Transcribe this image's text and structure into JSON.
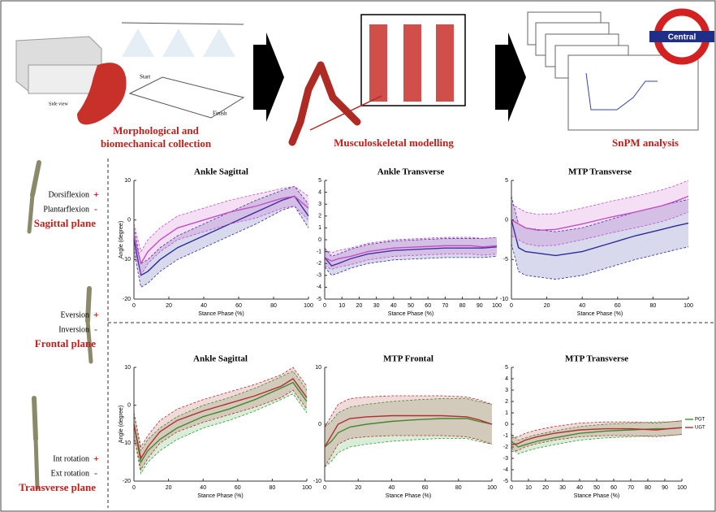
{
  "workflow": {
    "collection_lines": [
      "Morphological and",
      "biomechanical collection"
    ],
    "modelling": "Musculoskeletal modelling",
    "analysis": "SnPM analysis",
    "side_view": "Side view",
    "start": "Start",
    "finish": "Finish",
    "logo": "Central"
  },
  "planes": [
    {
      "positive": "Dorsiflexion",
      "negative": "Plantarflexion",
      "plus": "+",
      "minus": "-",
      "name": "Sagittal plane"
    },
    {
      "positive": "Eversion",
      "negative": "Inversion",
      "plus": "+",
      "minus": "-",
      "name": "Frontal plane"
    },
    {
      "positive": "Int rotation",
      "negative": "Ext rotation",
      "plus": "+",
      "minus": "-",
      "name": "Transverse plane"
    }
  ],
  "chart_data": [
    {
      "type": "line",
      "title": "Ankle Sagittal",
      "xlabel": "Stance Phase (%)",
      "ylabel": "Angle (degree)",
      "x": [
        0,
        4,
        8,
        15,
        25,
        40,
        55,
        70,
        85,
        92,
        100
      ],
      "series": [
        {
          "color": "#2b2b9c",
          "values": [
            -5,
            -14,
            -13,
            -10,
            -7,
            -4,
            -1,
            2,
            5,
            6,
            1
          ],
          "sd": [
            3,
            3,
            3,
            3,
            3,
            3,
            3,
            3,
            2.5,
            2.5,
            3
          ]
        },
        {
          "color": "#c24fc4",
          "values": [
            -4,
            -11,
            -8,
            -5,
            -2,
            0,
            2,
            3.5,
            5.5,
            6,
            3
          ],
          "sd": [
            3,
            3,
            3,
            3,
            3,
            3,
            3,
            3,
            2.5,
            2.5,
            3
          ]
        }
      ],
      "xlim": [
        0,
        100
      ],
      "ylim": [
        -20,
        10
      ],
      "xticks": [
        0,
        20,
        40,
        60,
        80,
        100
      ],
      "yticks": [
        -20,
        -10,
        0,
        10
      ]
    },
    {
      "type": "line",
      "title": "Ankle Transverse",
      "xlabel": "Stance Phase (%)",
      "x": [
        0,
        4,
        8,
        15,
        25,
        40,
        55,
        70,
        85,
        92,
        100
      ],
      "series": [
        {
          "color": "#2b2b9c",
          "values": [
            -1.5,
            -2.2,
            -2,
            -1.6,
            -1.2,
            -0.9,
            -0.8,
            -0.7,
            -0.7,
            -0.7,
            -0.6
          ],
          "sd": [
            0.8,
            0.8,
            0.8,
            0.8,
            0.8,
            0.8,
            0.8,
            0.8,
            0.8,
            0.8,
            0.8
          ]
        },
        {
          "color": "#c24fc4",
          "values": [
            -1.5,
            -1.8,
            -1.6,
            -1.4,
            -1,
            -0.7,
            -0.6,
            -0.5,
            -0.5,
            -0.6,
            -0.5
          ],
          "sd": [
            0.7,
            0.7,
            0.7,
            0.7,
            0.7,
            0.7,
            0.7,
            0.7,
            0.7,
            0.7,
            0.7
          ]
        }
      ],
      "xlim": [
        0,
        100
      ],
      "ylim": [
        -5,
        5
      ],
      "xticks": [
        0,
        10,
        20,
        30,
        40,
        50,
        60,
        70,
        80,
        90,
        100
      ],
      "yticks": [
        -5,
        -4,
        -3,
        -2,
        -1,
        0,
        1,
        2,
        3,
        4,
        5
      ]
    },
    {
      "type": "line",
      "title": "MTP Transverse",
      "xlabel": "Stance Phase (%)",
      "x": [
        0,
        4,
        8,
        15,
        25,
        40,
        55,
        70,
        85,
        92,
        100
      ],
      "series": [
        {
          "color": "#2b2b9c",
          "values": [
            0,
            -3.5,
            -4,
            -4.2,
            -4.5,
            -4,
            -3,
            -2,
            -1.2,
            -0.8,
            -0.4
          ],
          "sd": [
            3,
            3,
            3,
            3,
            3,
            3,
            3,
            3,
            3,
            3,
            3
          ]
        },
        {
          "color": "#c24fc4",
          "values": [
            0,
            -0.5,
            -1,
            -1.3,
            -1.2,
            -0.5,
            0.3,
            1,
            1.8,
            2.3,
            3
          ],
          "sd": [
            2,
            2,
            2,
            2,
            2,
            2,
            2,
            2,
            2,
            2,
            2
          ]
        }
      ],
      "xlim": [
        0,
        100
      ],
      "ylim": [
        -10,
        5
      ],
      "xticks": [
        0,
        20,
        40,
        60,
        80,
        100
      ],
      "yticks": [
        -10,
        -5,
        0,
        5
      ]
    },
    {
      "type": "line",
      "title": "Ankle Sagittal",
      "xlabel": "Stance Phase (%)",
      "ylabel": "Angle (degree)",
      "x": [
        0,
        4,
        8,
        15,
        25,
        40,
        55,
        70,
        85,
        92,
        100
      ],
      "series": [
        {
          "color": "#2e9a2e",
          "values": [
            -5,
            -15,
            -12,
            -9,
            -6,
            -3,
            -1,
            1.5,
            4.5,
            6,
            1
          ],
          "sd": [
            3,
            3,
            3,
            3,
            3,
            3,
            3,
            3,
            3,
            3,
            3
          ]
        },
        {
          "color": "#b03030",
          "values": [
            -5,
            -14,
            -11,
            -7,
            -4,
            -1.5,
            0.5,
            2.5,
            5,
            7,
            2
          ],
          "sd": [
            3,
            3,
            3,
            3,
            3,
            3,
            3,
            3,
            3,
            3,
            3
          ]
        }
      ],
      "xlim": [
        0,
        100
      ],
      "ylim": [
        -20,
        10
      ],
      "xticks": [
        0,
        20,
        40,
        60,
        80,
        100
      ],
      "yticks": [
        -20,
        -10,
        0,
        10
      ]
    },
    {
      "type": "line",
      "title": "MTP Frontal",
      "xlabel": "Stance Phase (%)",
      "x": [
        0,
        4,
        8,
        15,
        25,
        40,
        55,
        70,
        85,
        92,
        100
      ],
      "series": [
        {
          "color": "#2e9a2e",
          "values": [
            -4,
            -3,
            -1.5,
            -0.5,
            0,
            0.5,
            0.8,
            1,
            1,
            0.5,
            0
          ],
          "sd": [
            3.5,
            3.5,
            3.5,
            3.5,
            3.5,
            3.5,
            3.5,
            3.5,
            3.5,
            3.5,
            3.5
          ]
        },
        {
          "color": "#b03030",
          "values": [
            -4,
            -2,
            0,
            1,
            1.3,
            1.5,
            1.5,
            1.5,
            1.3,
            0.8,
            0
          ],
          "sd": [
            3.5,
            3.5,
            3.5,
            3.5,
            3.5,
            3.5,
            3.5,
            3.5,
            3.5,
            3.5,
            3.5
          ]
        }
      ],
      "xlim": [
        0,
        100
      ],
      "ylim": [
        -10,
        10
      ],
      "xticks": [
        0,
        20,
        40,
        60,
        80,
        100
      ],
      "yticks": [
        -10,
        0,
        10
      ]
    },
    {
      "type": "line",
      "title": "MTP Transverse",
      "xlabel": "Stance Phase (%)",
      "legend": "right",
      "x": [
        0,
        4,
        8,
        15,
        25,
        40,
        55,
        70,
        85,
        92,
        100
      ],
      "series": [
        {
          "name": "PGT",
          "color": "#2e9a2e",
          "values": [
            -1.5,
            -2,
            -1.8,
            -1.5,
            -1.2,
            -0.8,
            -0.6,
            -0.5,
            -0.4,
            -0.4,
            -0.3
          ],
          "sd": [
            0.6,
            0.6,
            0.6,
            0.6,
            0.6,
            0.6,
            0.6,
            0.6,
            0.6,
            0.6,
            0.6
          ]
        },
        {
          "name": "UGT",
          "color": "#b03030",
          "values": [
            -1.8,
            -1.7,
            -1.4,
            -1.1,
            -0.8,
            -0.5,
            -0.4,
            -0.4,
            -0.5,
            -0.4,
            -0.3
          ],
          "sd": [
            0.6,
            0.6,
            0.6,
            0.6,
            0.6,
            0.6,
            0.6,
            0.6,
            0.6,
            0.6,
            0.6
          ]
        }
      ],
      "xlim": [
        0,
        100
      ],
      "ylim": [
        -5,
        5
      ],
      "xticks": [
        0,
        10,
        20,
        30,
        40,
        50,
        60,
        70,
        80,
        90,
        100
      ],
      "yticks": [
        -5,
        -4,
        -3,
        -2,
        -1,
        0,
        1,
        2,
        3,
        4,
        5
      ]
    }
  ]
}
